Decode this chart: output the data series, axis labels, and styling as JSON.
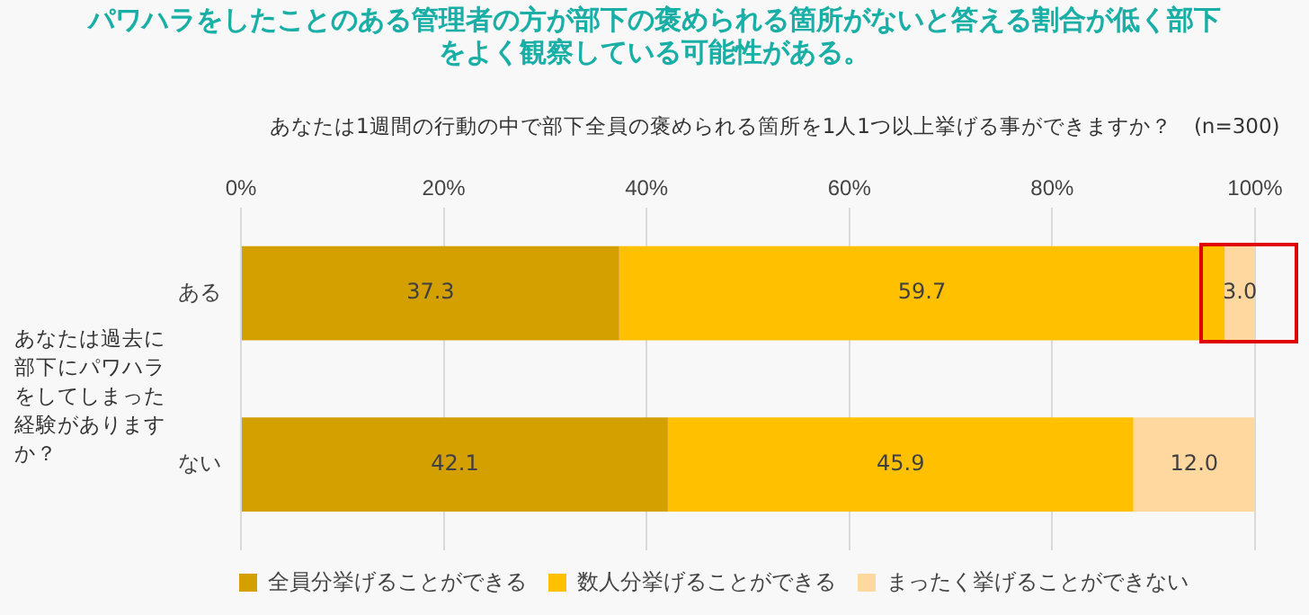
{
  "chart_data": {
    "type": "bar",
    "orientation": "horizontal",
    "stacked": true,
    "title": "パワハラをしたことのある管理者の方が部下の褒められる箇所がないと答える割合が低く部下をよく観察している可能性がある。",
    "subtitle": "あなたは1週間の行動の中で部下全員の褒められる箇所を1人1つ以上挙げる事ができますか？　(n=300)",
    "ylabel": "あなたは過去に部下にパワハラをしてしまった経験がありますか？",
    "categories": [
      "ある",
      "ない"
    ],
    "series": [
      {
        "name": "全員分挙げることができる",
        "color": "#d4a000",
        "values": [
          37.3,
          42.1
        ],
        "value_labels": [
          "37.3",
          "42.1"
        ]
      },
      {
        "name": "数人分挙げることができる",
        "color": "#ffc000",
        "values": [
          59.7,
          45.9
        ],
        "value_labels": [
          "59.7",
          "45.9"
        ]
      },
      {
        "name": "まったく挙げることができない",
        "color": "#ffd8a0",
        "values": [
          3.0,
          12.0
        ],
        "value_labels": [
          "3.0",
          "12.0"
        ]
      }
    ],
    "xlim": [
      0,
      100
    ],
    "xticks": [
      {
        "value": 0,
        "label": "0%"
      },
      {
        "value": 20,
        "label": "20%"
      },
      {
        "value": 40,
        "label": "40%"
      },
      {
        "value": 60,
        "label": "60%"
      },
      {
        "value": 80,
        "label": "80%"
      },
      {
        "value": 100,
        "label": "100%"
      }
    ],
    "grid": "x",
    "legend": "bottom"
  }
}
